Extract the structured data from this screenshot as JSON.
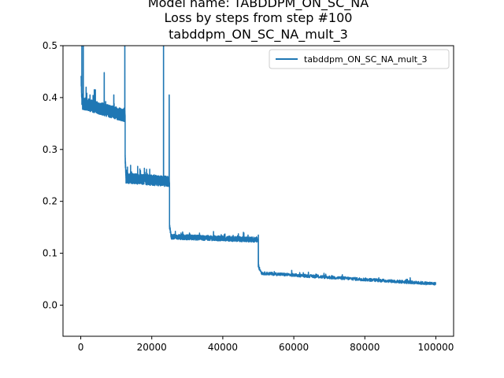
{
  "chart_data": {
    "type": "line",
    "title_lines": [
      "Model name: TABDDPM_ON_SC_NA",
      "Loss by steps from step #100",
      "tabddpm_ON_SC_NA_mult_3"
    ],
    "xlabel": "",
    "ylabel": "",
    "xlim": [
      -5000,
      105000
    ],
    "ylim": [
      -0.06,
      0.5
    ],
    "x_ticks": [
      0,
      20000,
      40000,
      60000,
      80000,
      100000
    ],
    "x_tick_labels": [
      "0",
      "20000",
      "40000",
      "60000",
      "80000",
      "100000"
    ],
    "y_ticks": [
      0.0,
      0.1,
      0.2,
      0.3,
      0.4,
      0.5
    ],
    "y_tick_labels": [
      "0.0",
      "0.1",
      "0.2",
      "0.3",
      "0.4",
      "0.5"
    ],
    "grid": false,
    "legend_position": "top-right",
    "series": [
      {
        "name": "tabddpm_ON_SC_NA_mult_3",
        "color": "#1f77b4",
        "segments": [
          {
            "x_start": 100,
            "x_end": 12500,
            "level_start": 0.39,
            "level_end": 0.365,
            "noise": 0.012
          },
          {
            "x_start": 12500,
            "x_end": 25000,
            "level_start": 0.245,
            "level_end": 0.238,
            "noise": 0.01
          },
          {
            "x_start": 25000,
            "x_end": 50000,
            "level_start": 0.132,
            "level_end": 0.126,
            "noise": 0.005
          },
          {
            "x_start": 50000,
            "x_end": 100000,
            "level_start": 0.062,
            "level_end": 0.041,
            "noise": 0.003
          }
        ],
        "spikes": [
          {
            "x": 300,
            "y": 0.5
          },
          {
            "x": 700,
            "y": 0.5
          },
          {
            "x": 1500,
            "y": 0.42
          },
          {
            "x": 2600,
            "y": 0.405
          },
          {
            "x": 3800,
            "y": 0.415
          },
          {
            "x": 6600,
            "y": 0.448
          },
          {
            "x": 9300,
            "y": 0.405
          },
          {
            "x": 12400,
            "y": 0.5
          },
          {
            "x": 23300,
            "y": 0.5
          },
          {
            "x": 24900,
            "y": 0.405
          },
          {
            "x": 50000,
            "y": 0.135
          },
          {
            "x": 59400,
            "y": 0.067
          }
        ]
      }
    ]
  }
}
